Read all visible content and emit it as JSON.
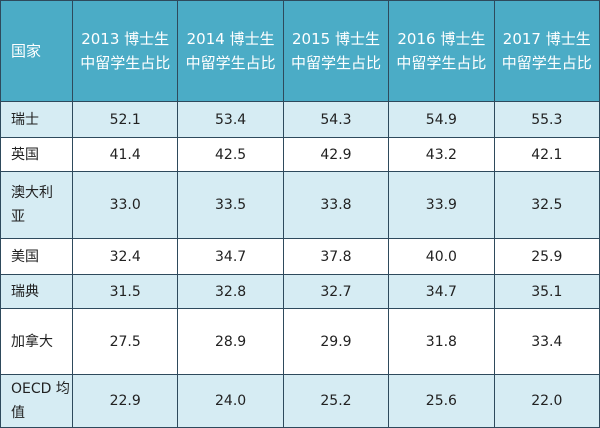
{
  "table": {
    "header": [
      [
        "国家"
      ],
      [
        "2013 博士生",
        "中留学生占比"
      ],
      [
        "2014 博士生",
        "中留学生占比"
      ],
      [
        "2015 博士生",
        "中留学生占比"
      ],
      [
        "2016 博士生",
        "中留学生占比"
      ],
      [
        "2017 博士生",
        "中留学生占比"
      ]
    ],
    "rows": [
      {
        "label": [
          "瑞士"
        ],
        "values": [
          "52.1",
          "53.4",
          "54.3",
          "54.9",
          "55.3"
        ]
      },
      {
        "label": [
          "英国"
        ],
        "values": [
          "41.4",
          "42.5",
          "42.9",
          "43.2",
          "42.1"
        ]
      },
      {
        "label": [
          "澳大利",
          "亚"
        ],
        "values": [
          "33.0",
          "33.5",
          "33.8",
          "33.9",
          "32.5"
        ]
      },
      {
        "label": [
          "美国"
        ],
        "values": [
          "32.4",
          "34.7",
          "37.8",
          "40.0",
          "25.9"
        ]
      },
      {
        "label": [
          "瑞典"
        ],
        "values": [
          "31.5",
          "32.8",
          "32.7",
          "34.7",
          "35.1"
        ]
      },
      {
        "label": [
          "加拿大"
        ],
        "values": [
          "27.5",
          "28.9",
          "29.9",
          "31.8",
          "33.4"
        ]
      },
      {
        "label": [
          "OECD 均",
          "值"
        ],
        "values": [
          "22.9",
          "24.0",
          "25.2",
          "25.6",
          "22.0"
        ]
      }
    ]
  }
}
